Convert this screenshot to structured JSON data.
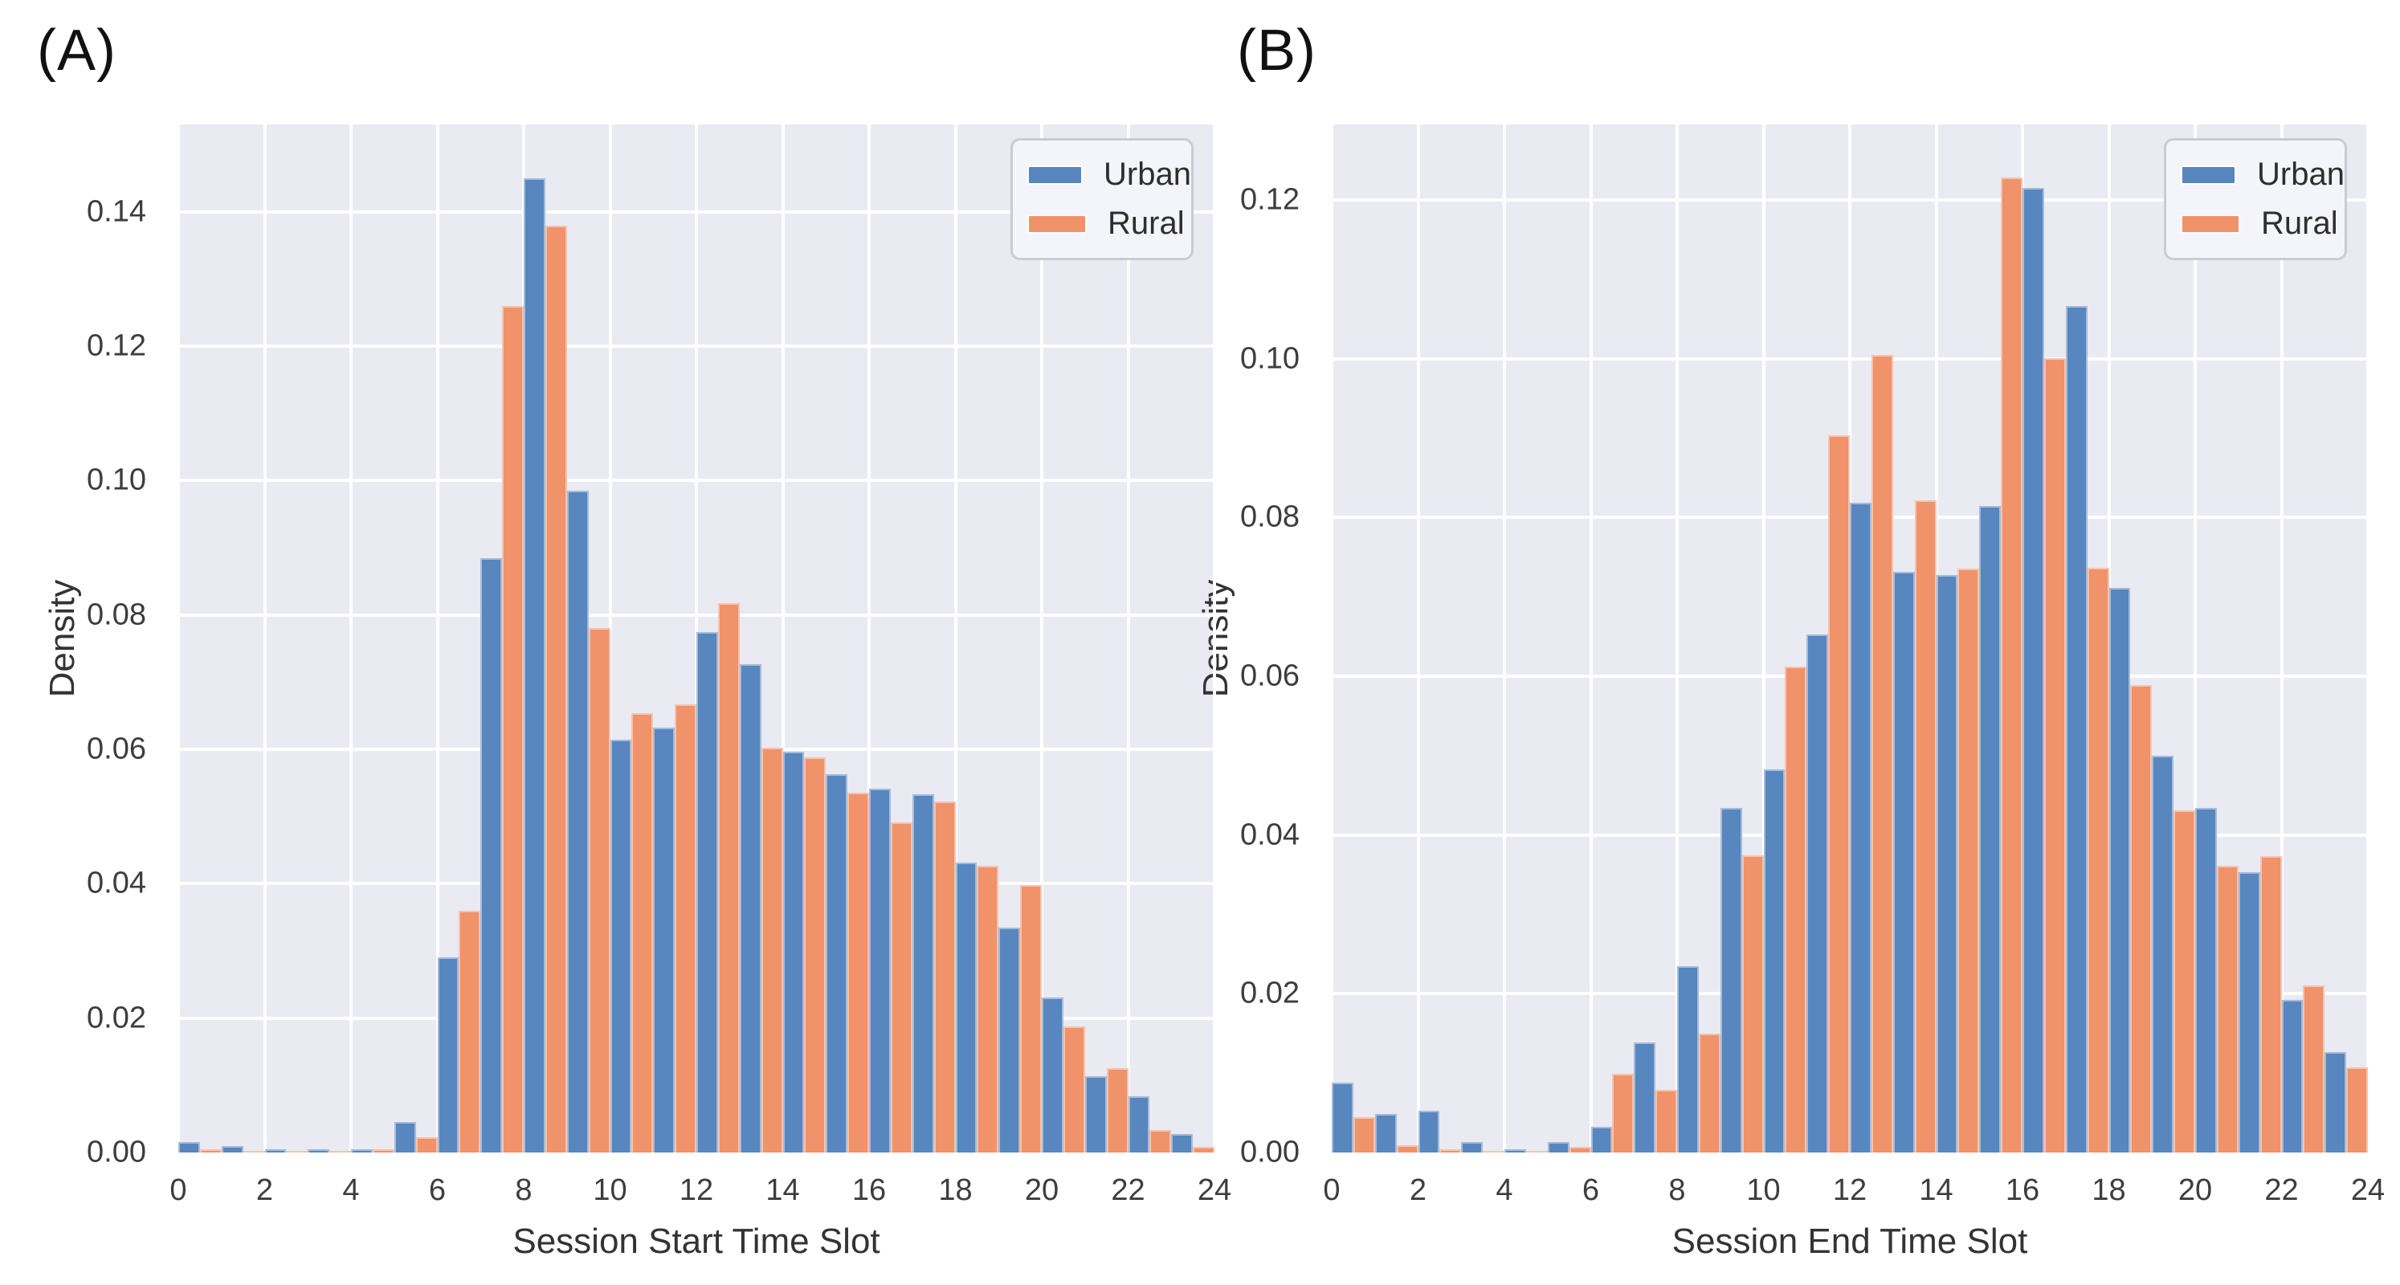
{
  "style": {
    "plot_background": "#E9EAF2",
    "grid_color": "#FFFFFF",
    "urban_color": "#5886BE",
    "rural_color": "#F0926A"
  },
  "chart_data": [
    {
      "type": "bar",
      "panel_label": "(A)",
      "xlabel": "Session Start Time Slot",
      "ylabel": "Density",
      "legend_position": "upper right",
      "grid": true,
      "xlim": [
        0,
        24
      ],
      "ylim": [
        0,
        0.153
      ],
      "x_ticks": [
        0,
        2,
        4,
        6,
        8,
        10,
        12,
        14,
        16,
        18,
        20,
        22,
        24
      ],
      "y_ticks": [
        "0.00",
        "0.02",
        "0.04",
        "0.06",
        "0.08",
        "0.10",
        "0.12",
        "0.14"
      ],
      "bins": [
        0,
        1,
        2,
        3,
        4,
        5,
        6,
        7,
        8,
        9,
        10,
        11,
        12,
        13,
        14,
        15,
        16,
        17,
        18,
        19,
        20,
        21,
        22,
        23
      ],
      "series": [
        {
          "name": "Urban",
          "color": "#5886BE",
          "values": [
            0.0015,
            0.001,
            0.0005,
            0.0005,
            0.0005,
            0.0045,
            0.029,
            0.0885,
            0.145,
            0.0985,
            0.0615,
            0.0632,
            0.0775,
            0.0727,
            0.0596,
            0.0563,
            0.0542,
            0.0533,
            0.0432,
            0.0335,
            0.0231,
            0.0114,
            0.0084,
            0.0027
          ]
        },
        {
          "name": "Rural",
          "color": "#F0926A",
          "values": [
            0.0005,
            0.0002,
            0.0003,
            0.0002,
            0.0005,
            0.0023,
            0.036,
            0.126,
            0.138,
            0.078,
            0.0654,
            0.0667,
            0.0818,
            0.0602,
            0.0588,
            0.0536,
            0.0491,
            0.0522,
            0.0427,
            0.0398,
            0.0188,
            0.0125,
            0.0034,
            0.0008
          ]
        }
      ]
    },
    {
      "type": "bar",
      "panel_label": "(B)",
      "xlabel": "Session End Time Slot",
      "ylabel": "Density",
      "legend_position": "upper right",
      "grid": true,
      "xlim": [
        0,
        24
      ],
      "ylim": [
        0,
        0.1295
      ],
      "x_ticks": [
        0,
        2,
        4,
        6,
        8,
        10,
        12,
        14,
        16,
        18,
        20,
        22,
        24
      ],
      "y_ticks": [
        "0.00",
        "0.02",
        "0.04",
        "0.06",
        "0.08",
        "0.10",
        "0.12"
      ],
      "bins": [
        0,
        1,
        2,
        3,
        4,
        5,
        6,
        7,
        8,
        9,
        10,
        11,
        12,
        13,
        14,
        15,
        16,
        17,
        18,
        19,
        20,
        21,
        22,
        23
      ],
      "series": [
        {
          "name": "Urban",
          "color": "#5886BE",
          "values": [
            0.0088,
            0.0049,
            0.0053,
            0.0013,
            0.0004,
            0.0013,
            0.0032,
            0.0139,
            0.0235,
            0.0434,
            0.0483,
            0.0653,
            0.0818,
            0.0731,
            0.0727,
            0.0814,
            0.1215,
            0.1066,
            0.0711,
            0.05,
            0.0434,
            0.0353,
            0.0192,
            0.0126
          ]
        },
        {
          "name": "Rural",
          "color": "#F0926A",
          "values": [
            0.0045,
            0.0009,
            0.0004,
            0.0002,
            0.0001,
            0.0007,
            0.0099,
            0.0079,
            0.015,
            0.0374,
            0.0612,
            0.0903,
            0.1005,
            0.0822,
            0.0736,
            0.1228,
            0.1001,
            0.0737,
            0.0589,
            0.0431,
            0.0361,
            0.0373,
            0.021,
            0.0107
          ]
        }
      ]
    }
  ]
}
